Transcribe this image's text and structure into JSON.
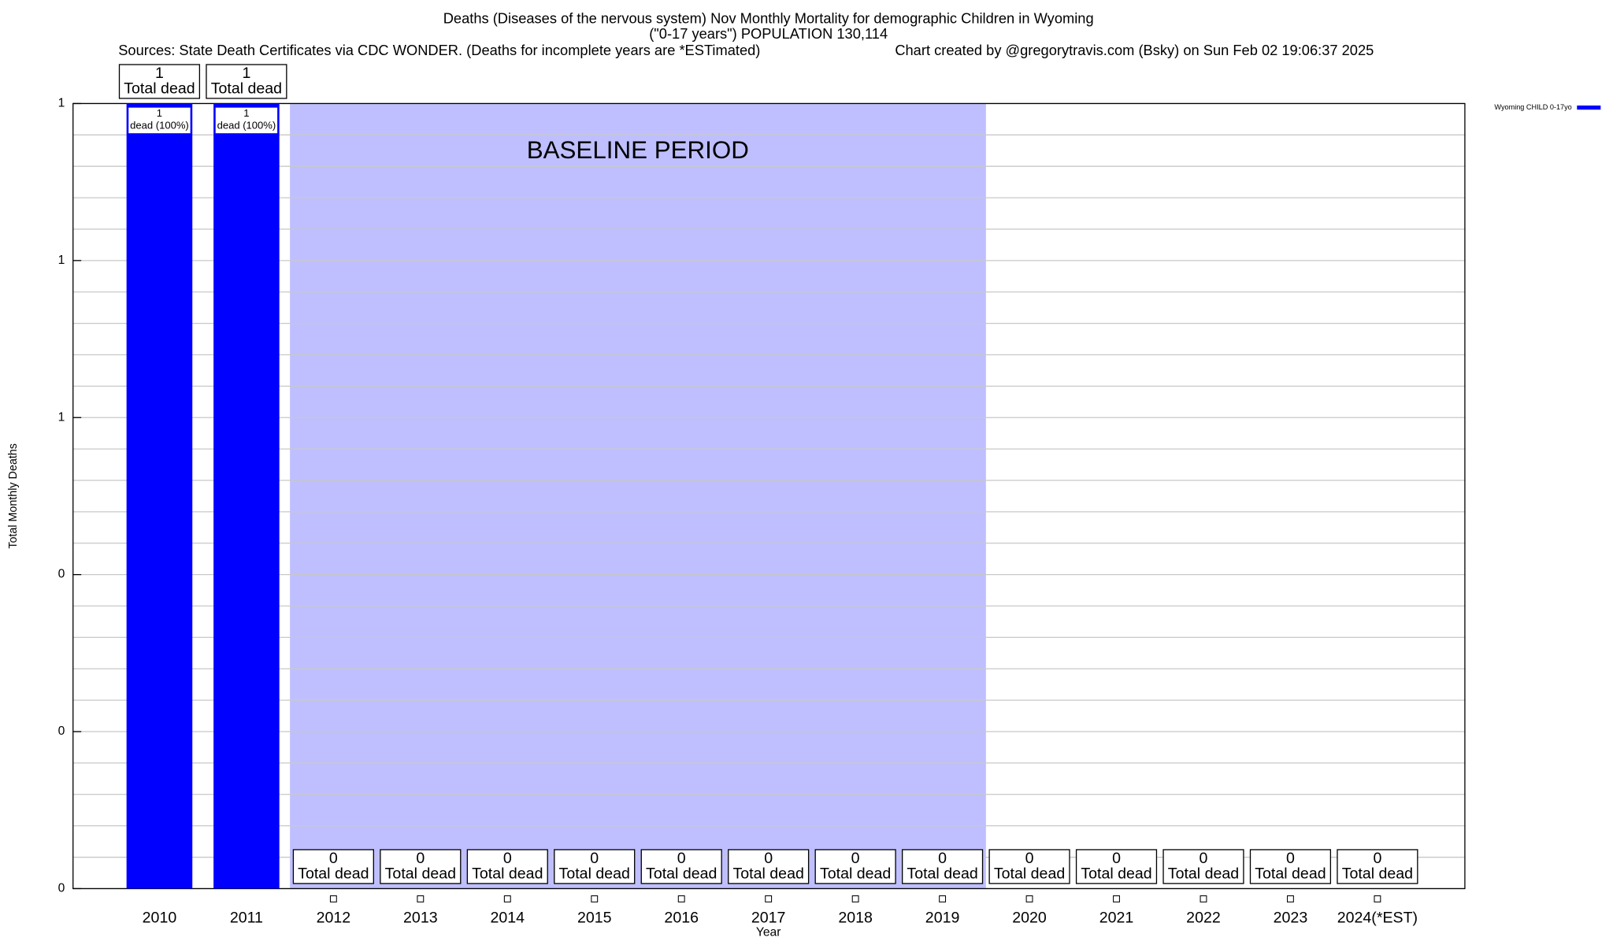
{
  "chart_data": {
    "type": "bar",
    "title": "Deaths (Diseases of the nervous system) Nov Monthly Mortality for demographic Children in Wyoming",
    "subtitle": "(\"0-17 years\") POPULATION 130,114",
    "sources": "Sources: State Death Certificates via CDC WONDER. (Deaths for incomplete years are *ESTimated)",
    "credit": "Chart created by @gregorytravis.com (Bsky) on Sun Feb 02 19:06:37 2025",
    "x_label": "Year",
    "y_label": "Total Monthly Deaths",
    "categories": [
      "2010",
      "2011",
      "2012",
      "2013",
      "2014",
      "2015",
      "2016",
      "2017",
      "2018",
      "2019",
      "2020",
      "2021",
      "2022",
      "2023",
      "2024(*EST)"
    ],
    "series": [
      {
        "name": "Wyoming CHILD 0-17yo",
        "color": "#0000ff",
        "values": [
          1,
          1,
          0,
          0,
          0,
          0,
          0,
          0,
          0,
          0,
          0,
          0,
          0,
          0,
          0
        ],
        "inner_labels": [
          "dead (100%)",
          "dead (100%)",
          null,
          null,
          null,
          null,
          null,
          null,
          null,
          null,
          null,
          null,
          null,
          null,
          null
        ]
      }
    ],
    "total_label": "Total dead",
    "baseline": {
      "label": "BASELINE PERIOD",
      "start": "2012",
      "end": "2019",
      "color": "#bfbfff"
    },
    "ylim": [
      0,
      1
    ],
    "yticks": [
      0,
      {
        "value": 0.2,
        "label": "0"
      },
      {
        "value": 0.4,
        "label": "0"
      },
      {
        "value": 0.6,
        "label": "1"
      },
      {
        "value": 0.8,
        "label": "1"
      },
      1
    ],
    "grid": true,
    "legend": "top-right"
  }
}
